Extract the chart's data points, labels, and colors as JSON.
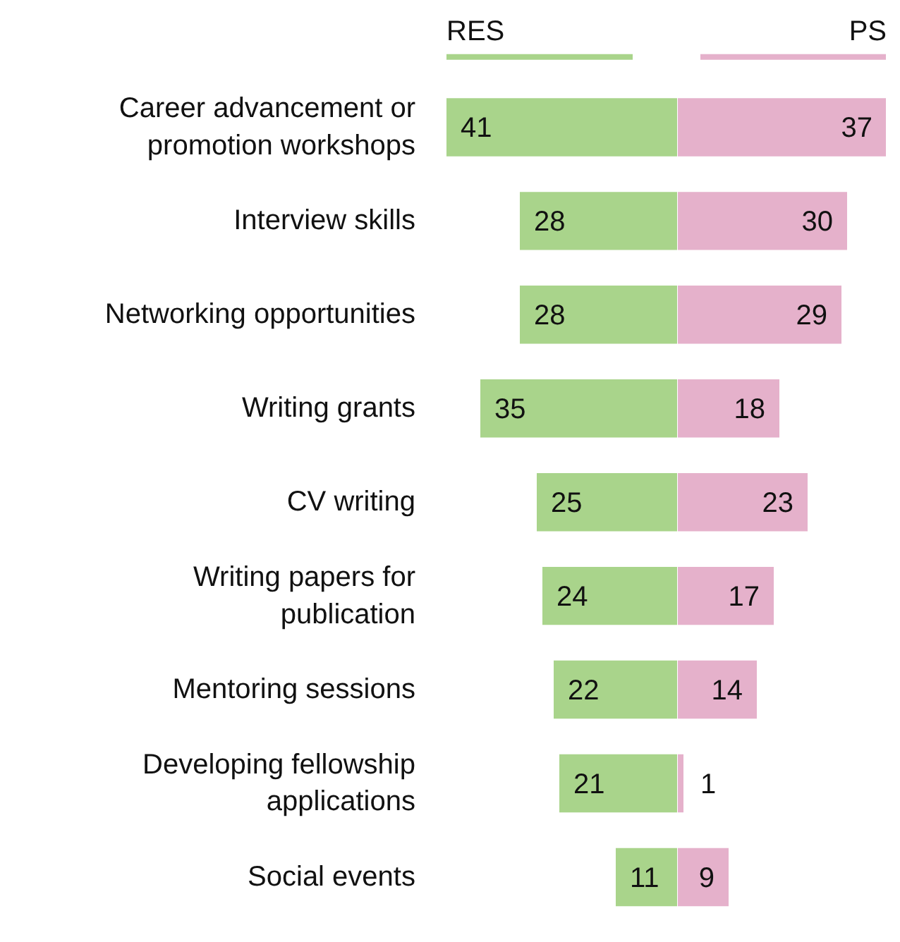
{
  "chart_data": [
    {
      "type": "bar",
      "orientation": "horizontal",
      "categories": [
        "Career advancement or promotion workshops",
        "Interview skills",
        "Networking opportunities",
        "Writing grants",
        "CV writing",
        "Writing papers for publication",
        "Mentoring sessions",
        "Developing fellowship applications",
        "Social events"
      ],
      "series": [
        {
          "name": "RES",
          "color": "#a9d48b",
          "values": [
            41,
            28,
            28,
            35,
            25,
            24,
            22,
            21,
            11
          ]
        }
      ],
      "xlim": [
        41,
        0
      ],
      "data_labels": true,
      "legend": "top",
      "grid": false
    },
    {
      "type": "bar",
      "orientation": "horizontal",
      "categories": [
        null,
        null,
        null,
        null,
        null,
        null,
        null,
        null,
        null
      ],
      "series": [
        {
          "name": "PS",
          "color": "#e5b1cb",
          "values": [
            37,
            30,
            29,
            18,
            23,
            17,
            14,
            1,
            9
          ]
        }
      ],
      "xlim": [
        0,
        37
      ],
      "data_labels": true,
      "legend": "top",
      "grid": false
    }
  ]
}
